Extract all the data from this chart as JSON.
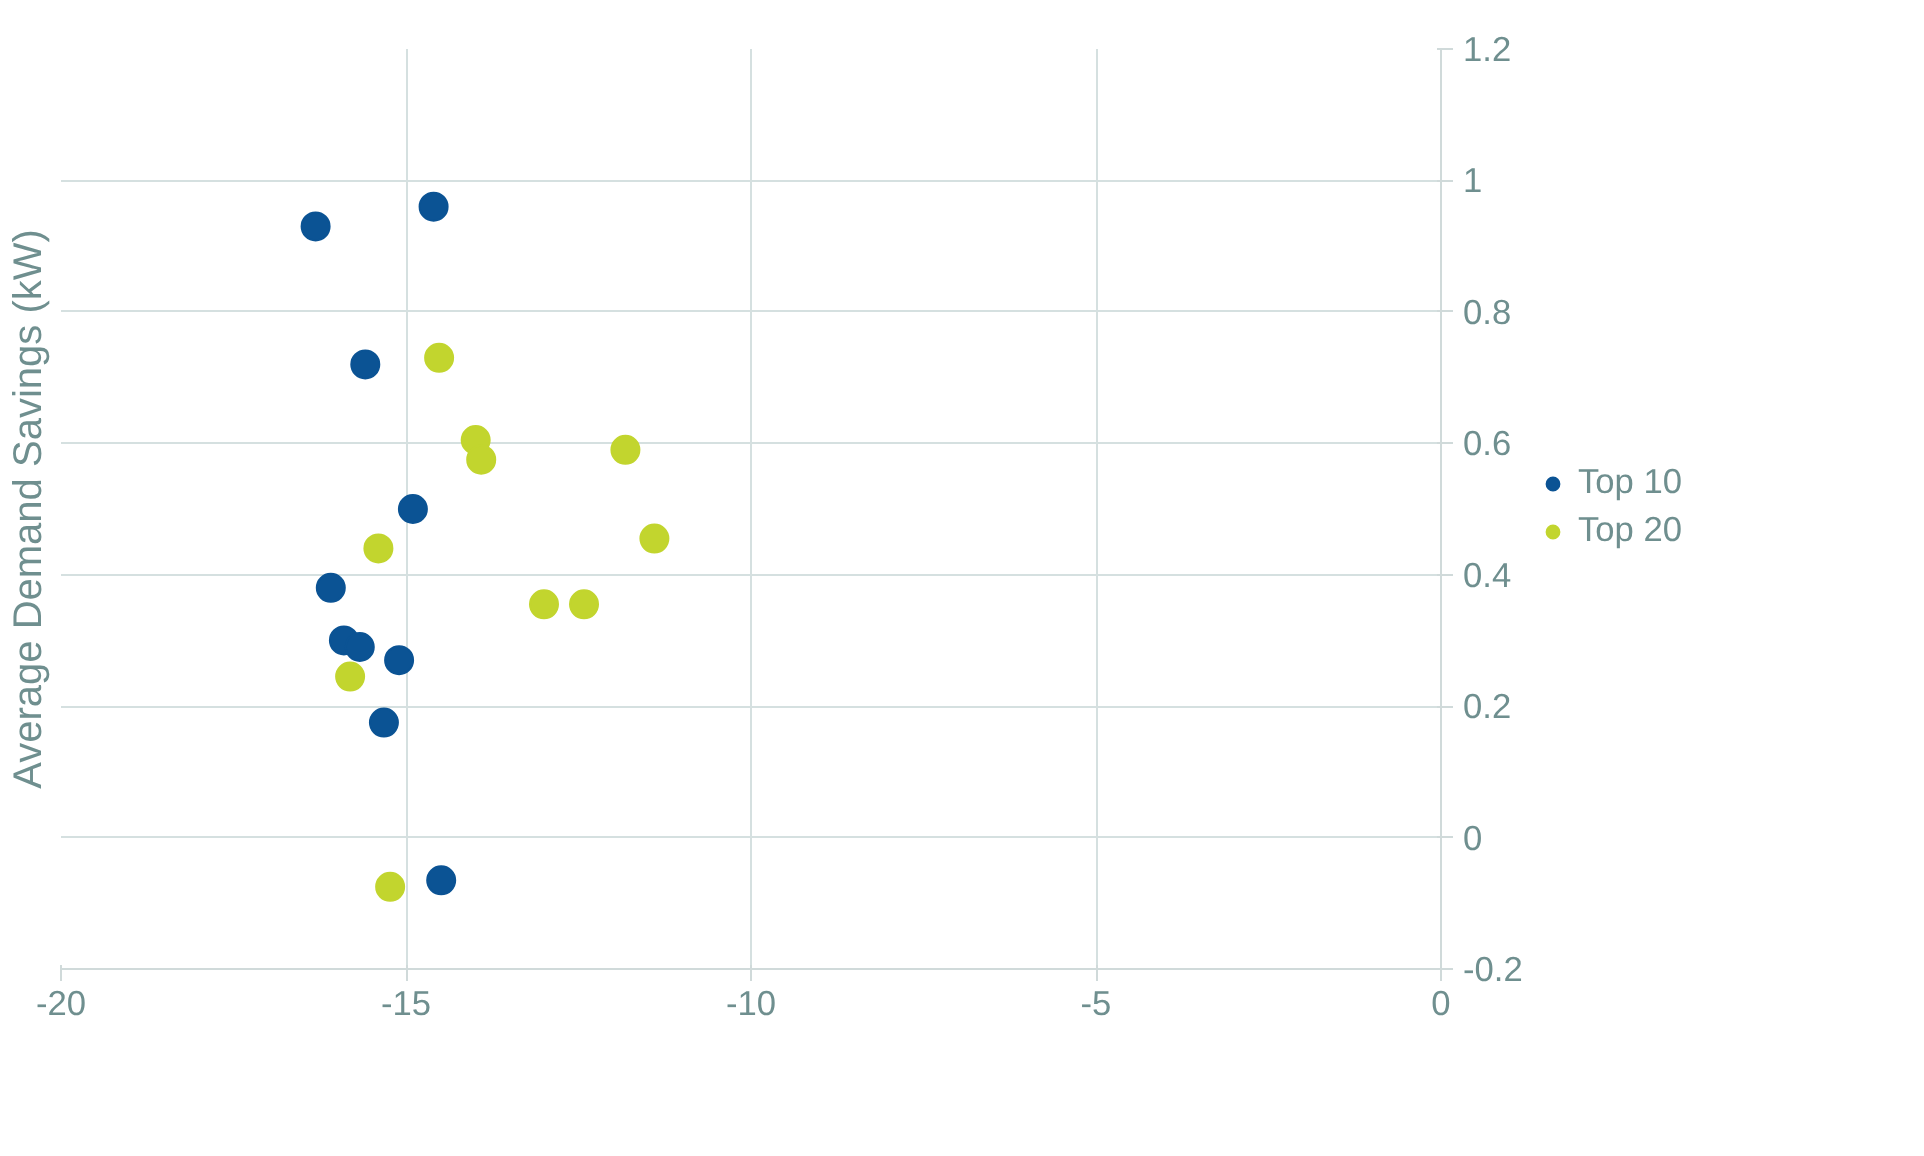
{
  "chart_data": {
    "type": "scatter",
    "ylabel": "Average Demand Savings (kW)",
    "xlim": [
      -20,
      0
    ],
    "xticks": [
      -20,
      -15,
      -10,
      -5,
      0
    ],
    "ylim": [
      -0.2,
      1.2
    ],
    "yticks": [
      -0.2,
      0,
      0.2,
      0.4,
      0.6,
      0.8,
      1,
      1.2
    ],
    "grid": true,
    "legend": "right",
    "marker": "circle",
    "series": [
      {
        "name": "Top 10",
        "color": "#0b5394",
        "x": [
          -16.31,
          -14.6,
          -15.59,
          -14.9,
          -16.09,
          -15.9,
          -15.67,
          -15.1,
          -15.32,
          -14.49
        ],
        "values": [
          0.93,
          0.96,
          0.72,
          0.5,
          0.38,
          0.3,
          0.29,
          0.27,
          0.175,
          -0.065
        ]
      },
      {
        "name": "Top 20",
        "color": "#c2d52e",
        "x": [
          -14.52,
          -13.99,
          -13.91,
          -11.82,
          -11.4,
          -15.4,
          -13.0,
          -12.42,
          -15.81,
          -15.23
        ],
        "values": [
          0.73,
          0.605,
          0.575,
          0.59,
          0.455,
          0.44,
          0.355,
          0.355,
          0.245,
          -0.075
        ]
      }
    ]
  }
}
